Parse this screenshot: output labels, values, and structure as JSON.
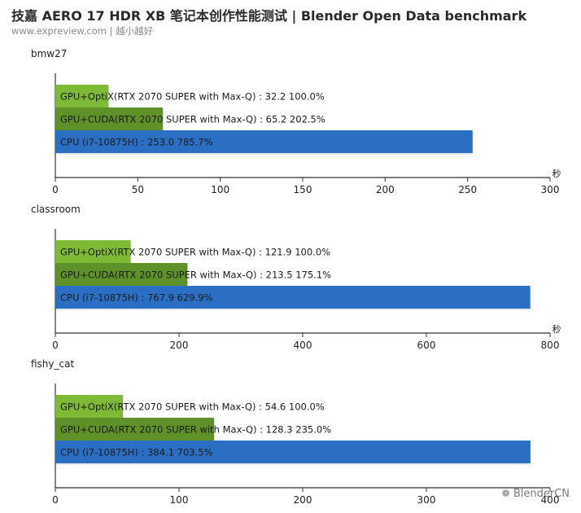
{
  "header": {
    "title": "技嘉 AERO 17 HDR XB 笔记本创作性能测试 | Blender Open Data benchmark",
    "subtitle": "www.expreview.com | 越小越好"
  },
  "watermark": "BlenderCN",
  "colors": {
    "optix": "#7fba37",
    "cuda": "#5e9128",
    "cpu": "#2a6fc4",
    "axis": "#333333"
  },
  "chart_data": [
    {
      "type": "bar",
      "orientation": "horizontal",
      "title": "bmw27",
      "xlabel": "秒",
      "xlim": [
        0,
        300
      ],
      "xticks": [
        0,
        50,
        100,
        150,
        200,
        250,
        300
      ],
      "categories": [
        "GPU+OptiX(RTX 2070 SUPER with Max-Q)",
        "GPU+CUDA(RTX 2070 SUPER with Max-Q)",
        "CPU (i7-10875H)"
      ],
      "values": [
        32.2,
        65.2,
        253.0
      ],
      "labels": [
        "GPU+OptiX(RTX 2070 SUPER with Max-Q) : 32.2  100.0%",
        "GPU+CUDA(RTX 2070 SUPER with Max-Q) : 65.2  202.5%",
        "CPU (i7-10875H) : 253.0  785.7%"
      ]
    },
    {
      "type": "bar",
      "orientation": "horizontal",
      "title": "classroom",
      "xlabel": "秒",
      "xlim": [
        0,
        800
      ],
      "xticks": [
        0,
        200,
        400,
        600,
        800
      ],
      "categories": [
        "GPU+OptiX(RTX 2070 SUPER with Max-Q)",
        "GPU+CUDA(RTX 2070 SUPER with Max-Q)",
        "CPU (i7-10875H)"
      ],
      "values": [
        121.9,
        213.5,
        767.9
      ],
      "labels": [
        "GPU+OptiX(RTX 2070 SUPER with Max-Q) : 121.9  100.0%",
        "GPU+CUDA(RTX 2070 SUPER with Max-Q) : 213.5  175.1%",
        "CPU (i7-10875H) : 767.9  629.9%"
      ]
    },
    {
      "type": "bar",
      "orientation": "horizontal",
      "title": "fishy_cat",
      "xlabel": "",
      "xlim": [
        0,
        400
      ],
      "xticks": [
        0,
        100,
        200,
        300,
        400
      ],
      "categories": [
        "GPU+OptiX(RTX 2070 SUPER with Max-Q)",
        "GPU+CUDA(RTX 2070 SUPER with Max-Q)",
        "CPU (i7-10875H)"
      ],
      "values": [
        54.6,
        128.3,
        384.1
      ],
      "labels": [
        "GPU+OptiX(RTX 2070 SUPER with Max-Q) : 54.6  100.0%",
        "GPU+CUDA(RTX 2070 SUPER with Max-Q) : 128.3  235.0%",
        "CPU (i7-10875H) : 384.1  703.5%"
      ]
    }
  ]
}
